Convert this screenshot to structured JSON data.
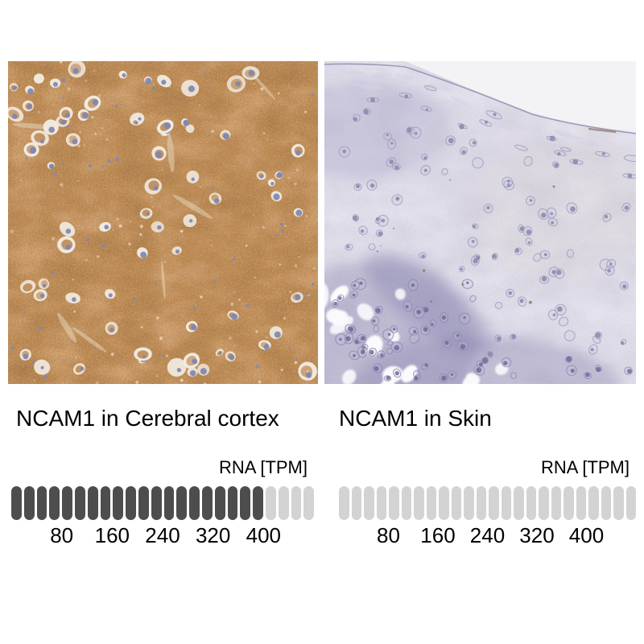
{
  "figure": {
    "type": "antibody staining comparison figure",
    "background_color": "#ffffff"
  },
  "panels": [
    {
      "id": "cerebral-cortex",
      "title": "NCAM1 in Cerebral cortex",
      "image_description": "Immunohistochemistry micrograph of cerebral cortex with strong brown staining and scattered pale cells with blue nuclei"
    },
    {
      "id": "skin",
      "title": "NCAM1 in Skin",
      "image_description": "Immunohistochemistry micrograph of skin epidermis with pale lavender hematoxylin staining, white slide background in upper right"
    }
  ],
  "chart_data": [
    {
      "type": "bar",
      "title": "NCAM1 in Cerebral cortex",
      "unit_label": "RNA [TPM]",
      "segments_total": 24,
      "segments_filled": 20,
      "tpm_per_segment": 20,
      "approx_value_tpm": 400,
      "axis_ticks": [
        80,
        160,
        240,
        320,
        400
      ],
      "axis_range": [
        0,
        480
      ],
      "filled_color": "#4d4d4d",
      "empty_color": "#d3d3d3",
      "legend_position": "top-right",
      "grid": false
    },
    {
      "type": "bar",
      "title": "NCAM1 in Skin",
      "unit_label": "RNA [TPM]",
      "segments_total": 24,
      "segments_filled": 0,
      "tpm_per_segment": 20,
      "approx_value_tpm": 0,
      "axis_ticks": [
        80,
        160,
        240,
        320,
        400
      ],
      "axis_range": [
        0,
        480
      ],
      "filled_color": "#4d4d4d",
      "empty_color": "#d3d3d3",
      "legend_position": "top-right",
      "grid": false
    }
  ]
}
